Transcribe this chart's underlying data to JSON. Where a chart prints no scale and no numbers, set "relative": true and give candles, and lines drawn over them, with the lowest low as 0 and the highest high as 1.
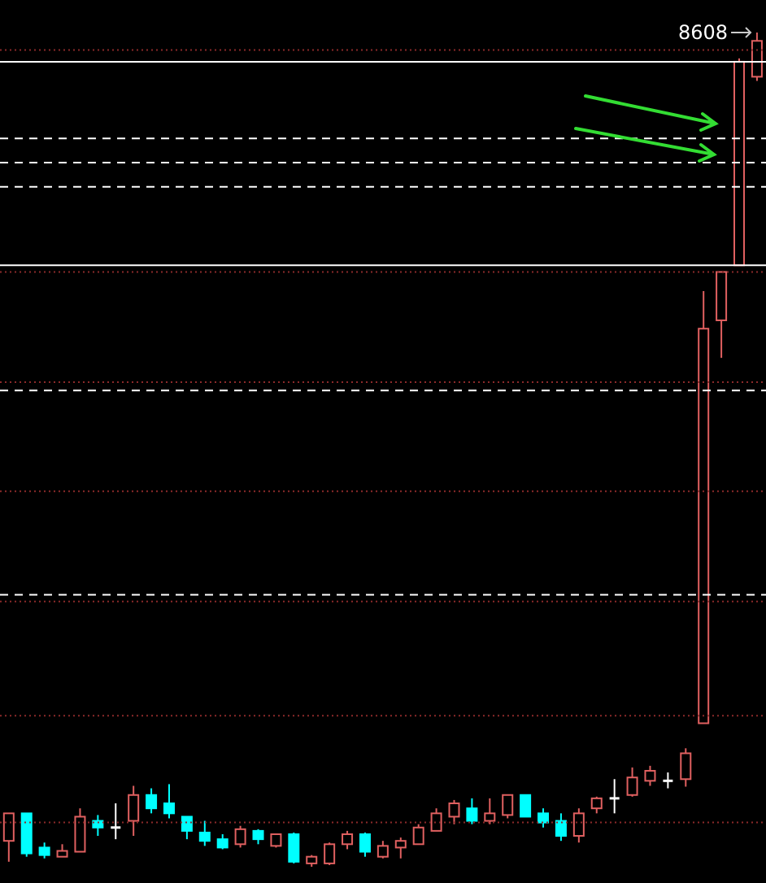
{
  "chart_data": {
    "type": "candlestick",
    "relative": true,
    "categories": [
      null,
      null,
      null,
      null,
      null,
      null,
      null,
      null,
      null,
      null,
      null,
      null,
      null,
      null,
      null,
      null,
      null,
      null,
      null,
      null,
      null,
      null,
      null,
      null,
      null,
      null,
      null,
      null,
      null,
      null,
      null,
      null,
      null,
      null,
      null,
      null,
      null,
      null,
      null,
      null,
      null,
      null,
      null
    ],
    "ohlc": [
      [
        0.031,
        0.064,
        0.006,
        0.064
      ],
      [
        0.064,
        0.064,
        0.012,
        0.016
      ],
      [
        0.023,
        0.029,
        0.01,
        0.014
      ],
      [
        0.012,
        0.027,
        0.012,
        0.019
      ],
      [
        0.018,
        0.07,
        0.018,
        0.06
      ],
      [
        0.055,
        0.062,
        0.037,
        0.047
      ],
      [
        0.047,
        0.076,
        0.033,
        0.047
      ],
      [
        0.055,
        0.097,
        0.037,
        0.086
      ],
      [
        0.086,
        0.094,
        0.064,
        0.07
      ],
      [
        0.076,
        0.099,
        0.058,
        0.064
      ],
      [
        0.06,
        0.06,
        0.033,
        0.043
      ],
      [
        0.041,
        0.055,
        0.025,
        0.031
      ],
      [
        0.033,
        0.039,
        0.021,
        0.023
      ],
      [
        0.027,
        0.049,
        0.023,
        0.045
      ],
      [
        0.043,
        0.045,
        0.027,
        0.033
      ],
      [
        0.025,
        0.039,
        0.023,
        0.039
      ],
      [
        0.039,
        0.041,
        0.004,
        0.006
      ],
      [
        0.004,
        0.014,
        0,
        0.012
      ],
      [
        0.004,
        0.029,
        0.002,
        0.027
      ],
      [
        0.027,
        0.043,
        0.021,
        0.039
      ],
      [
        0.039,
        0.041,
        0.012,
        0.018
      ],
      [
        0.012,
        0.031,
        0.01,
        0.025
      ],
      [
        0.023,
        0.035,
        0.01,
        0.031
      ],
      [
        0.027,
        0.051,
        0.027,
        0.047
      ],
      [
        0.043,
        0.07,
        0.043,
        0.064
      ],
      [
        0.06,
        0.08,
        0.051,
        0.076
      ],
      [
        0.07,
        0.082,
        0.051,
        0.055
      ],
      [
        0.055,
        0.082,
        0.051,
        0.064
      ],
      [
        0.062,
        0.086,
        0.058,
        0.086
      ],
      [
        0.086,
        0.086,
        0.06,
        0.06
      ],
      [
        0.064,
        0.07,
        0.047,
        0.053
      ],
      [
        0.055,
        0.064,
        0.031,
        0.037
      ],
      [
        0.037,
        0.07,
        0.029,
        0.064
      ],
      [
        0.07,
        0.084,
        0.064,
        0.082
      ],
      [
        0.082,
        0.105,
        0.064,
        0.082
      ],
      [
        0.086,
        0.119,
        0.084,
        0.107
      ],
      [
        0.103,
        0.121,
        0.097,
        0.115
      ],
      [
        0.103,
        0.113,
        0.094,
        0.103
      ],
      [
        0.105,
        0.142,
        0.096,
        0.136
      ],
      [
        0.172,
        0.69,
        0.172,
        0.645
      ],
      [
        0.655,
        0.713,
        0.61,
        0.713
      ],
      [
        0.721,
        0.969,
        0.721,
        0.965
      ],
      [
        0.947,
        1,
        0.942,
        0.99
      ]
    ],
    "colors": [
      "#e06060",
      "#00ffff",
      "#00ffff",
      "#e06060",
      "#e06060",
      "#00ffff",
      "#ffffff",
      "#e06060",
      "#00ffff",
      "#00ffff",
      "#00ffff",
      "#00ffff",
      "#00ffff",
      "#e06060",
      "#00ffff",
      "#e06060",
      "#00ffff",
      "#e06060",
      "#e06060",
      "#e06060",
      "#00ffff",
      "#e06060",
      "#e06060",
      "#e06060",
      "#e06060",
      "#e06060",
      "#00ffff",
      "#e06060",
      "#e06060",
      "#00ffff",
      "#00ffff",
      "#00ffff",
      "#e06060",
      "#e06060",
      "#ffffff",
      "#e06060",
      "#e06060",
      "#ffffff",
      "#e06060",
      "#e06060",
      "#e06060",
      "#e06060",
      "#e06060"
    ],
    "ref_lines": [
      {
        "axis": "y",
        "value": 0.965,
        "color": "#ffffff",
        "line_style": "solid"
      },
      {
        "axis": "y",
        "value": 0.873,
        "color": "#ffffff",
        "line_style": "dashed"
      },
      {
        "axis": "y",
        "value": 0.844,
        "color": "#ffffff",
        "line_style": "dashed"
      },
      {
        "axis": "y",
        "value": 0.815,
        "color": "#ffffff",
        "line_style": "dashed"
      },
      {
        "axis": "y",
        "value": 0.721,
        "color": "#ffffff",
        "line_style": "solid"
      },
      {
        "axis": "y",
        "value": 0.571,
        "color": "#ffffff",
        "line_style": "dashed"
      },
      {
        "axis": "y",
        "value": 0.326,
        "color": "#ffffff",
        "line_style": "dashed"
      },
      {
        "axis": "y",
        "value": 0.979,
        "color": "#8b2a2a",
        "line_style": "dotted"
      },
      {
        "axis": "y",
        "value": 0.713,
        "color": "#8b2a2a",
        "line_style": "dotted"
      },
      {
        "axis": "y",
        "value": 0.581,
        "color": "#8b2a2a",
        "line_style": "dotted"
      },
      {
        "axis": "y",
        "value": 0.45,
        "color": "#8b2a2a",
        "line_style": "dotted"
      },
      {
        "axis": "y",
        "value": 0.318,
        "color": "#8b2a2a",
        "line_style": "dotted"
      },
      {
        "axis": "y",
        "value": 0.181,
        "color": "#8b2a2a",
        "line_style": "dotted"
      },
      {
        "axis": "y",
        "value": 0.053,
        "color": "#8b2a2a",
        "line_style": "dotted"
      }
    ],
    "annotations": [
      "8608"
    ]
  }
}
